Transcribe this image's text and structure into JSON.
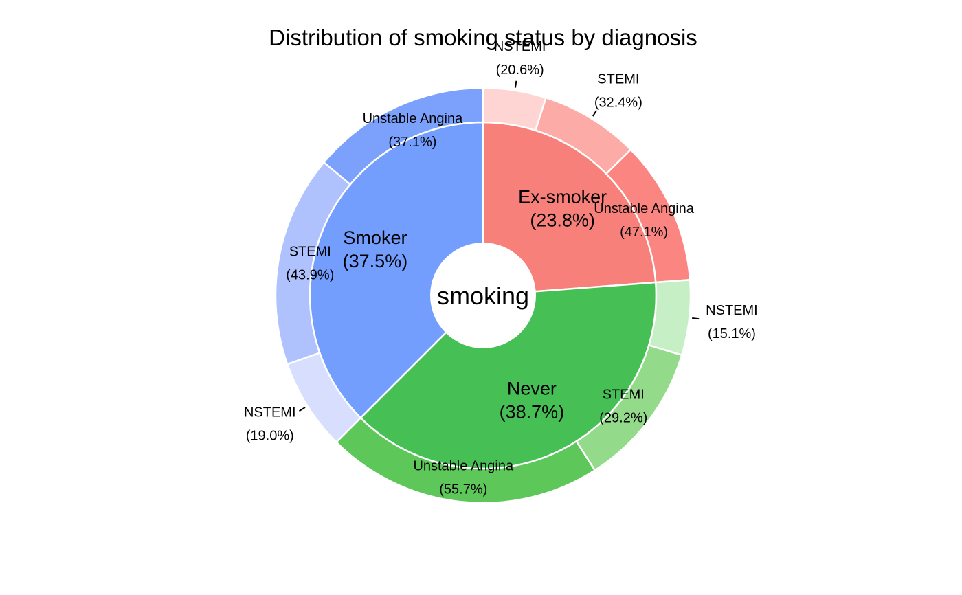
{
  "chart_data": {
    "type": "pie",
    "subtype": "sunburst-donut",
    "title": "Distribution of smoking status by diagnosis",
    "center_label": "smoking",
    "inner": [
      {
        "name": "Ex-smoker",
        "pct_label": "(23.8%)",
        "value": 23.8,
        "color": "#F8807B"
      },
      {
        "name": "Never",
        "pct_label": "(38.7%)",
        "value": 38.7,
        "color": "#46BF55"
      },
      {
        "name": "Smoker",
        "pct_label": "(37.5%)",
        "value": 37.5,
        "color": "#739EFE"
      }
    ],
    "outer": [
      {
        "parent": "Ex-smoker",
        "name": "NSTEMI",
        "pct_label": "(20.6%)",
        "value": 20.6,
        "color": "#FED5D3",
        "leader": true
      },
      {
        "parent": "Ex-smoker",
        "name": "STEMI",
        "pct_label": "(32.4%)",
        "value": 32.4,
        "color": "#FDABA6",
        "leader": true
      },
      {
        "parent": "Ex-smoker",
        "name": "Unstable Angina",
        "pct_label": "(47.1%)",
        "value": 47.1,
        "color": "#FB8580",
        "leader": false
      },
      {
        "parent": "Never",
        "name": "NSTEMI",
        "pct_label": "(15.1%)",
        "value": 15.1,
        "color": "#C7EFC5",
        "leader": true
      },
      {
        "parent": "Never",
        "name": "STEMI",
        "pct_label": "(29.2%)",
        "value": 29.2,
        "color": "#93DB8B",
        "leader": false
      },
      {
        "parent": "Never",
        "name": "Unstable Angina",
        "pct_label": "(55.7%)",
        "value": 55.7,
        "color": "#5DC75A",
        "leader": false
      },
      {
        "parent": "Smoker",
        "name": "NSTEMI",
        "pct_label": "(19.0%)",
        "value": 19.0,
        "color": "#D8DFFE",
        "leader": true
      },
      {
        "parent": "Smoker",
        "name": "STEMI",
        "pct_label": "(43.9%)",
        "value": 43.9,
        "color": "#AFC2FE",
        "leader": false
      },
      {
        "parent": "Smoker",
        "name": "Unstable Angina",
        "pct_label": "(37.1%)",
        "value": 37.1,
        "color": "#7BA1FD",
        "leader": false
      }
    ]
  }
}
